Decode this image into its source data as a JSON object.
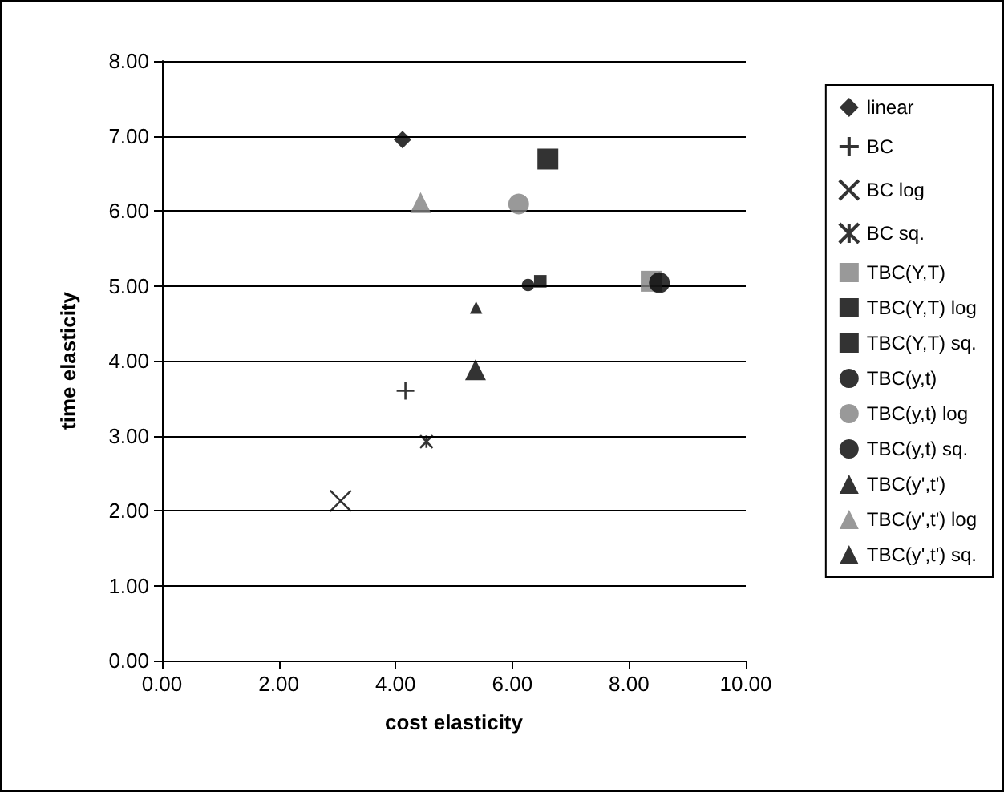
{
  "chart_data": {
    "type": "scatter",
    "xlabel": "cost elasticity",
    "ylabel": "time elasticity",
    "xlim": [
      0,
      10
    ],
    "xticks": [
      {
        "value": 0,
        "label": "0.00"
      },
      {
        "value": 2,
        "label": "2.00"
      },
      {
        "value": 4,
        "label": "4.00"
      },
      {
        "value": 6,
        "label": "6.00"
      },
      {
        "value": 8,
        "label": "8.00"
      },
      {
        "value": 10,
        "label": "10.00"
      }
    ],
    "ylim": [
      0,
      8
    ],
    "yticks": [
      {
        "value": 0,
        "label": "0.00"
      },
      {
        "value": 1,
        "label": "1.00"
      },
      {
        "value": 2,
        "label": "2.00"
      },
      {
        "value": 3,
        "label": "3.00"
      },
      {
        "value": 4,
        "label": "4.00"
      },
      {
        "value": 5,
        "label": "5.00"
      },
      {
        "value": 6,
        "label": "6.00"
      },
      {
        "value": 7,
        "label": "7.00"
      },
      {
        "value": 8,
        "label": "8.00"
      }
    ],
    "grid": "y",
    "legend": "right",
    "series": [
      {
        "name": "linear",
        "color": "#000000",
        "marker": "diamond",
        "x": [
          4.12
        ],
        "values": [
          6.95
        ]
      },
      {
        "name": "BC",
        "color": "#000000",
        "marker": "cross",
        "x": [
          4.17
        ],
        "values": [
          3.6
        ]
      },
      {
        "name": "BC log",
        "color": "#000000",
        "marker": "x",
        "x": [
          3.06
        ],
        "values": [
          2.13
        ]
      },
      {
        "name": "BC sq.",
        "color": "#000000",
        "x": [
          4.53
        ],
        "values": [
          2.92
        ]
      },
      {
        "name": "TBC(Y,T)",
        "color": "#808080",
        "marker": "square",
        "x": [
          8.38
        ],
        "values": [
          5.06
        ]
      },
      {
        "name": "TBC(Y,T) log",
        "color": "#000000",
        "marker": "square",
        "x": [
          6.61
        ],
        "values": [
          6.69
        ]
      },
      {
        "name": "TBC(Y,T) sq.",
        "color": "#000000",
        "marker": "square",
        "x": [
          6.48
        ],
        "values": [
          5.06
        ]
      },
      {
        "name": "TBC(y,t)",
        "color": "#000000",
        "marker": "circle",
        "x": [
          8.52
        ],
        "values": [
          5.04
        ]
      },
      {
        "name": "TBC(y,t) log",
        "color": "#808080",
        "marker": "circle",
        "x": [
          6.11
        ],
        "values": [
          6.09
        ]
      },
      {
        "name": "TBC(y,t) sq.",
        "color": "#000000",
        "marker": "circle",
        "x": [
          6.27
        ],
        "values": [
          5.01
        ]
      },
      {
        "name": "TBC(y',t')",
        "color": "#000000",
        "marker": "triangle",
        "x": [
          5.37
        ],
        "values": [
          3.88
        ]
      },
      {
        "name": "TBC(y',t') log",
        "color": "#808080",
        "marker": "triangle",
        "x": [
          4.43
        ],
        "values": [
          6.11
        ]
      },
      {
        "name": "TBC(y',t') sq.",
        "color": "#000000",
        "marker": "triangle",
        "x": [
          5.38
        ],
        "values": [
          4.71
        ]
      }
    ]
  }
}
